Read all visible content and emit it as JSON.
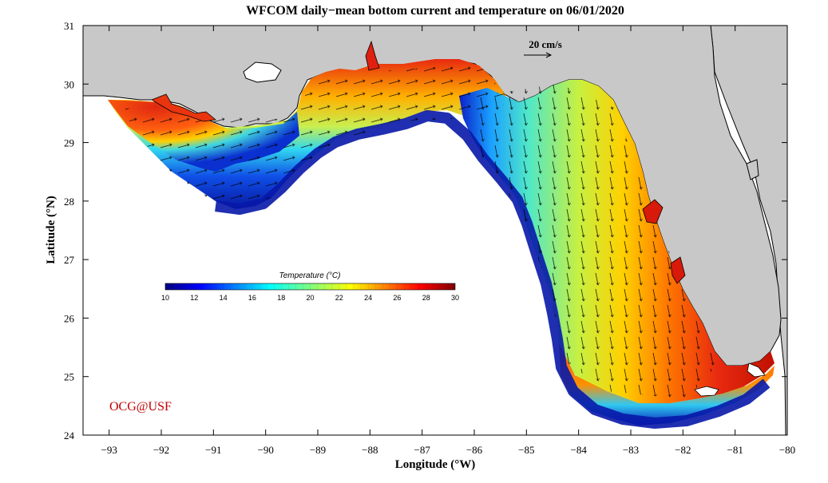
{
  "title": "WFCOM daily−mean bottom current and temperature on 06/01/2020",
  "x_axis": {
    "label": "Longitude (°W)",
    "ticks": [
      "−93",
      "−92",
      "−91",
      "−90",
      "−89",
      "−88",
      "−87",
      "−86",
      "−85",
      "−84",
      "−83",
      "−82",
      "−81",
      "−80"
    ],
    "range": [
      -93.5,
      -80
    ]
  },
  "y_axis": {
    "label": "Latitude (°N)",
    "ticks": [
      "24",
      "25",
      "26",
      "27",
      "28",
      "29",
      "30",
      "31"
    ],
    "range": [
      24,
      31
    ]
  },
  "colorbar": {
    "title": "Temperature (°C)",
    "ticks": [
      "10",
      "12",
      "14",
      "16",
      "18",
      "20",
      "22",
      "24",
      "26",
      "28",
      "30"
    ],
    "range": [
      10,
      30
    ],
    "colormap": "jet"
  },
  "scale_arrow": {
    "label": "20 cm/s"
  },
  "credit": "OCG@USF",
  "colors": {
    "land": "#c8c8c8",
    "credit": "#c00000",
    "warm": "#e8200c",
    "cold": "#0a1a9a"
  },
  "regions": {
    "land": [
      "Louisiana",
      "Mississippi-Alabama coast",
      "Florida peninsula"
    ],
    "ocean_domain": "West Florida Shelf and Northern Gulf of Mexico shelf"
  }
}
